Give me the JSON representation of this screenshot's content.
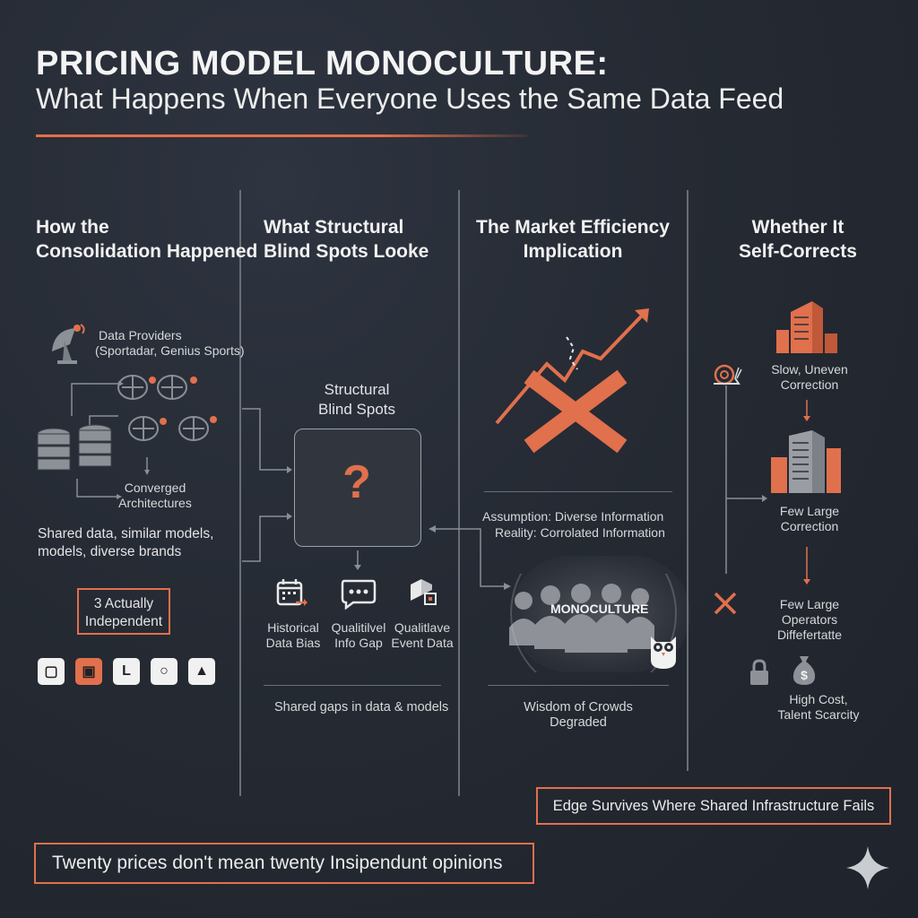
{
  "header": {
    "title": "PRICING MODEL MONOCULTURE:",
    "subtitle": "What Happens When Everyone Uses the Same Data Feed"
  },
  "colors": {
    "background": "#262a32",
    "accent": "#e1704d",
    "text": "#ececec",
    "line": "#6a6e76"
  },
  "columns": [
    {
      "heading": [
        "How the",
        "Consolidation Happened"
      ],
      "providers_label": [
        "Data Providers",
        "(Sportadar, Genius Sports)"
      ],
      "converged_label": [
        "Converged",
        "Architectures"
      ],
      "summary": [
        "Shared data, similar models,",
        "models, diverse brands"
      ],
      "independent_box": [
        "3 Actually",
        "Independent"
      ],
      "badges": [
        "▢",
        "▣",
        "L",
        "○",
        "▲"
      ]
    },
    {
      "heading": [
        "What Structural",
        "Blind Spots Looke"
      ],
      "box_title": [
        "Structural",
        "Blind Spots"
      ],
      "question_mark": "?",
      "items": [
        {
          "icon": "calendar-icon",
          "label": [
            "Historical",
            "Data Bias"
          ]
        },
        {
          "icon": "chat-icon",
          "label": [
            "Qualitilvel",
            "Info Gap"
          ]
        },
        {
          "icon": "cube-icon",
          "label": [
            "Qualitlave",
            "Event Data"
          ]
        }
      ],
      "footer": "Shared gaps in data & models"
    },
    {
      "heading": [
        "The Market Efficiency",
        "Implication"
      ],
      "assumption": "Assumption: Diverse Information",
      "reality": "Reality: Corrolated Information",
      "crowd_label": "MONOCULTURE",
      "footer": [
        "Wisdom of Crowds",
        "Degraded"
      ]
    },
    {
      "heading": [
        "Whether It",
        "Self-Corrects"
      ],
      "step1": [
        "Slow, Uneven",
        "Correction"
      ],
      "step2": [
        "Few Large",
        "Correction"
      ],
      "step3": [
        "Few Large",
        "Operators",
        "Diffefertatte"
      ],
      "step4": [
        "High Cost,",
        "Talent Scarcity"
      ]
    }
  ],
  "edge_box": "Edge Survives Where Shared Infrastructure Fails",
  "bottom_box": "Twenty prices don't mean twenty Insipendunt opinions"
}
